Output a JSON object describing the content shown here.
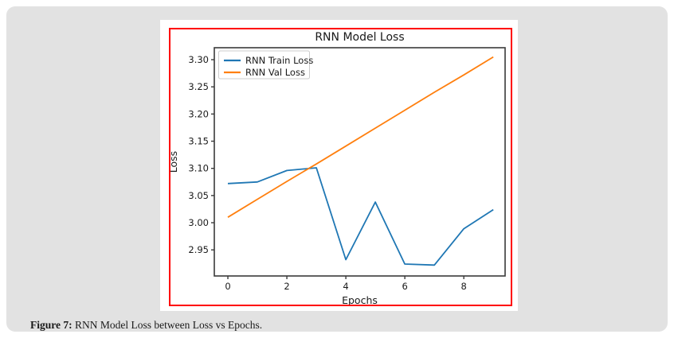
{
  "page": {
    "background": "#ffffff",
    "panel_color": "#e2e2e2"
  },
  "figure": {
    "border_color": "#ff0000",
    "caption": {
      "label": "Figure 7:",
      "text": " RNN Model Loss between Loss vs Epochs."
    }
  },
  "chart_data": {
    "type": "line",
    "title": "RNN Model Loss",
    "xlabel": "Epochs",
    "ylabel": "Loss",
    "x": [
      0,
      1,
      2,
      3,
      4,
      5,
      6,
      7,
      8,
      9
    ],
    "series": [
      {
        "name": "RNN Train Loss",
        "color": "#1f77b4",
        "values": [
          3.072,
          3.075,
          3.096,
          3.101,
          2.932,
          3.038,
          2.924,
          2.922,
          2.989,
          3.024
        ]
      },
      {
        "name": "RNN Val Loss",
        "color": "#ff7f0e",
        "values": [
          3.01,
          3.043,
          3.076,
          3.108,
          3.141,
          3.174,
          3.207,
          3.24,
          3.272,
          3.305
        ]
      }
    ],
    "xticks": [
      0,
      2,
      4,
      6,
      8
    ],
    "yticks": [
      2.95,
      3.0,
      3.05,
      3.1,
      3.15,
      3.2,
      3.25,
      3.3
    ],
    "xlim": [
      -0.46,
      9.4
    ],
    "ylim": [
      2.902,
      3.322
    ],
    "legend_position": "upper left",
    "grid": false,
    "text_color": "#1a1a1a",
    "spine_color": "#3a3a3a",
    "legend_border_color": "#cccccc"
  }
}
